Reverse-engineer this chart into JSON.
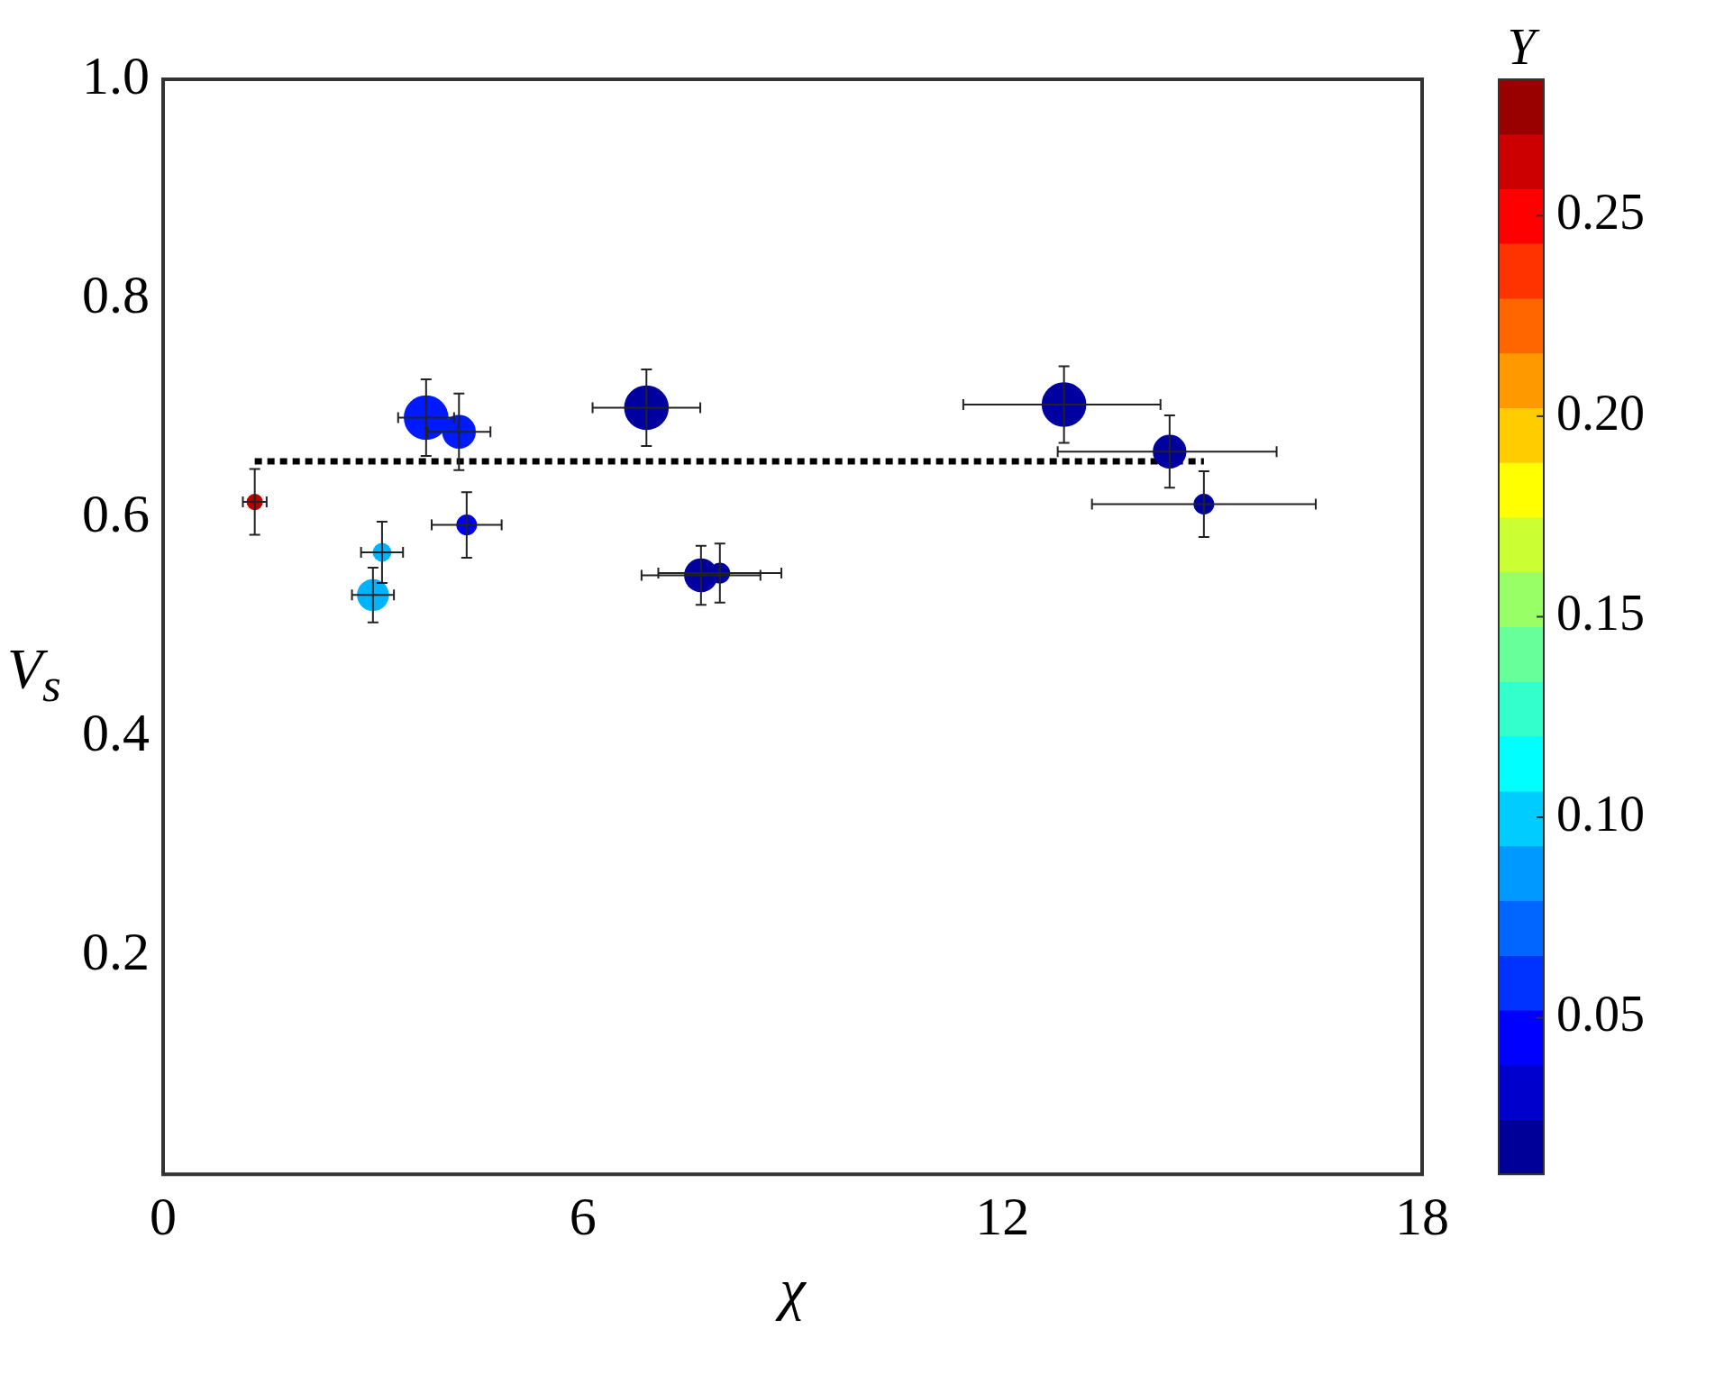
{
  "chart_data": {
    "type": "bubble",
    "xlabel": "χ",
    "ylabel": "V$_{s}$",
    "clabel": "Y",
    "xlim": [
      0,
      18
    ],
    "xticks": [
      0,
      6,
      12,
      18
    ],
    "ylim": [
      0,
      1
    ],
    "yticks": [
      0.2,
      0.4,
      0.6,
      0.8,
      {
        "value": 1,
        "label": "1.0"
      }
    ],
    "clim": [
      0.011,
      0.284
    ],
    "cticks": [
      0.05,
      {
        "value": 0.1,
        "label": "0.10"
      },
      0.15,
      {
        "value": 0.2,
        "label": "0.20"
      },
      0.25
    ],
    "grid": false,
    "legend": false,
    "series": [
      {
        "x": [
          1.31,
          3.13,
          3.0,
          3.76,
          4.23,
          4.34,
          6.91,
          7.96,
          7.69,
          12.88,
          14.39,
          14.88
        ],
        "values": [
          0.614,
          0.568,
          0.529,
          0.691,
          0.678,
          0.593,
          0.7,
          0.549,
          0.547,
          0.703,
          0.66,
          0.612
        ],
        "sizes": [
          0.12,
          0.16,
          0.5,
          1,
          0.56,
          0.2,
          1,
          0.2,
          0.56,
          1,
          0.56,
          0.2
        ],
        "colors": [
          "#b40000",
          "#00b3ff",
          "#00b3ff",
          "#001aff",
          "#001aff",
          "#0000ec",
          "#0000a1",
          "#0000a1",
          "#0000a1",
          "#0000a1",
          "#0000a1",
          "#0000a1"
        ],
        "cvalues": [
          0.27,
          0.093,
          0.093,
          0.052,
          0.052,
          0.04,
          0.02,
          0.02,
          0.02,
          0.02,
          0.02,
          0.02
        ],
        "errors": [
          0.03,
          0.028,
          0.025,
          0.035,
          0.035,
          0.03,
          0.035,
          0.027,
          0.027,
          0.035,
          0.033,
          0.03
        ],
        "xerrors": [
          0.17,
          0.3,
          0.3,
          0.4,
          0.45,
          0.5,
          0.77,
          0.88,
          0.85,
          [
            11.44,
            14.26
          ],
          [
            12.79,
            15.92
          ],
          [
            13.28,
            16.48
          ]
        ]
      },
      {
        "type": "line",
        "x": [
          1.31,
          14.88
        ],
        "values": [
          0.651,
          0.651
        ],
        "color": "#000000",
        "line_style": "dotted",
        "marker": "none"
      }
    ]
  }
}
